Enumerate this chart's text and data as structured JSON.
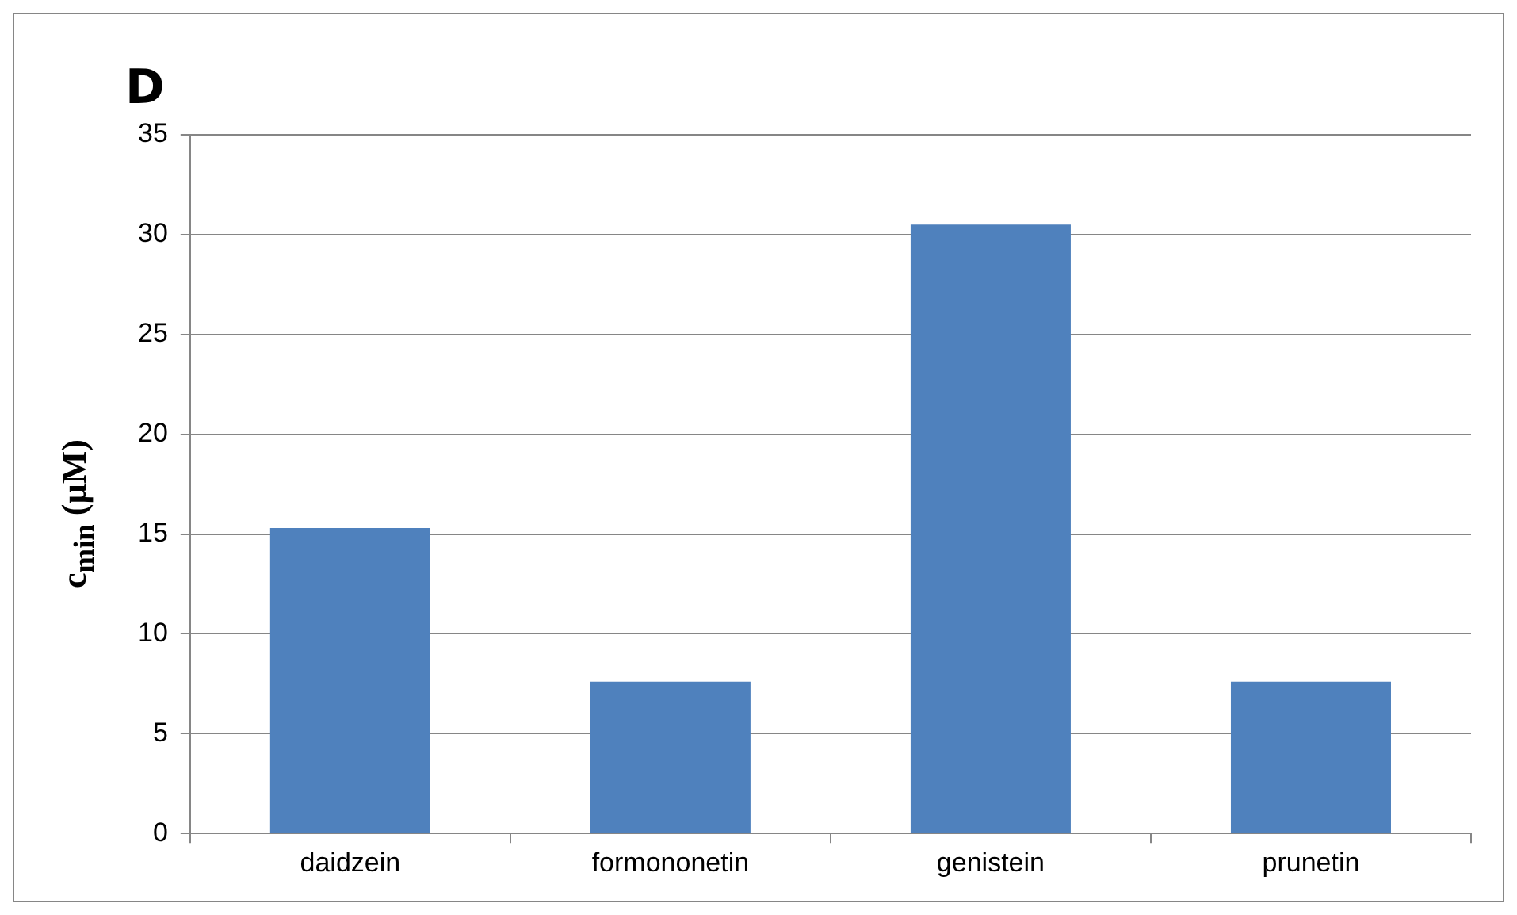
{
  "chart_data": {
    "type": "bar",
    "title": "D",
    "ylabel": "c$_{min}$ (µM)",
    "categories": [
      "daidzein",
      "formononetin",
      "genistein",
      "prunetin"
    ],
    "values": [
      15.3,
      7.6,
      30.5,
      7.6
    ],
    "color": "#4f81bd",
    "ylim": [
      0,
      35
    ],
    "yticks": [
      0,
      5,
      10,
      15,
      20,
      25,
      30,
      35
    ],
    "grid": "y",
    "legend": false
  }
}
